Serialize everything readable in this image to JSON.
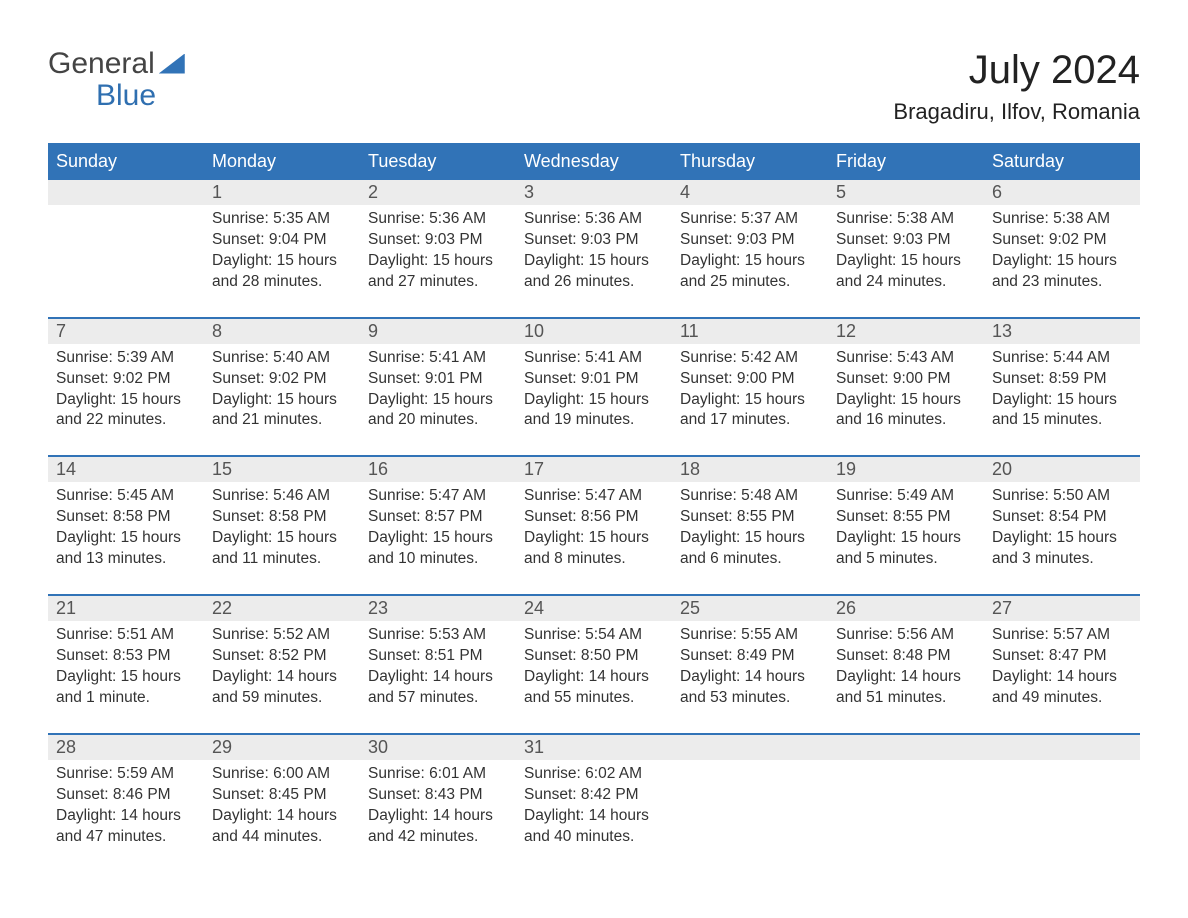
{
  "brand": {
    "general": "General",
    "blue": "Blue"
  },
  "title": "July 2024",
  "location": "Bragadiru, Ilfov, Romania",
  "header_bg": "#3173b7",
  "header_fg": "#ffffff",
  "daynum_bg": "#ececec",
  "rule_color": "#3173b7",
  "text_color": "#333333",
  "dow": [
    "Sunday",
    "Monday",
    "Tuesday",
    "Wednesday",
    "Thursday",
    "Friday",
    "Saturday"
  ],
  "weeks": [
    {
      "days": [
        {
          "num": "",
          "sunrise": "",
          "sunset": "",
          "daylight1": "",
          "daylight2": ""
        },
        {
          "num": "1",
          "sunrise": "Sunrise: 5:35 AM",
          "sunset": "Sunset: 9:04 PM",
          "daylight1": "Daylight: 15 hours",
          "daylight2": "and 28 minutes."
        },
        {
          "num": "2",
          "sunrise": "Sunrise: 5:36 AM",
          "sunset": "Sunset: 9:03 PM",
          "daylight1": "Daylight: 15 hours",
          "daylight2": "and 27 minutes."
        },
        {
          "num": "3",
          "sunrise": "Sunrise: 5:36 AM",
          "sunset": "Sunset: 9:03 PM",
          "daylight1": "Daylight: 15 hours",
          "daylight2": "and 26 minutes."
        },
        {
          "num": "4",
          "sunrise": "Sunrise: 5:37 AM",
          "sunset": "Sunset: 9:03 PM",
          "daylight1": "Daylight: 15 hours",
          "daylight2": "and 25 minutes."
        },
        {
          "num": "5",
          "sunrise": "Sunrise: 5:38 AM",
          "sunset": "Sunset: 9:03 PM",
          "daylight1": "Daylight: 15 hours",
          "daylight2": "and 24 minutes."
        },
        {
          "num": "6",
          "sunrise": "Sunrise: 5:38 AM",
          "sunset": "Sunset: 9:02 PM",
          "daylight1": "Daylight: 15 hours",
          "daylight2": "and 23 minutes."
        }
      ]
    },
    {
      "days": [
        {
          "num": "7",
          "sunrise": "Sunrise: 5:39 AM",
          "sunset": "Sunset: 9:02 PM",
          "daylight1": "Daylight: 15 hours",
          "daylight2": "and 22 minutes."
        },
        {
          "num": "8",
          "sunrise": "Sunrise: 5:40 AM",
          "sunset": "Sunset: 9:02 PM",
          "daylight1": "Daylight: 15 hours",
          "daylight2": "and 21 minutes."
        },
        {
          "num": "9",
          "sunrise": "Sunrise: 5:41 AM",
          "sunset": "Sunset: 9:01 PM",
          "daylight1": "Daylight: 15 hours",
          "daylight2": "and 20 minutes."
        },
        {
          "num": "10",
          "sunrise": "Sunrise: 5:41 AM",
          "sunset": "Sunset: 9:01 PM",
          "daylight1": "Daylight: 15 hours",
          "daylight2": "and 19 minutes."
        },
        {
          "num": "11",
          "sunrise": "Sunrise: 5:42 AM",
          "sunset": "Sunset: 9:00 PM",
          "daylight1": "Daylight: 15 hours",
          "daylight2": "and 17 minutes."
        },
        {
          "num": "12",
          "sunrise": "Sunrise: 5:43 AM",
          "sunset": "Sunset: 9:00 PM",
          "daylight1": "Daylight: 15 hours",
          "daylight2": "and 16 minutes."
        },
        {
          "num": "13",
          "sunrise": "Sunrise: 5:44 AM",
          "sunset": "Sunset: 8:59 PM",
          "daylight1": "Daylight: 15 hours",
          "daylight2": "and 15 minutes."
        }
      ]
    },
    {
      "days": [
        {
          "num": "14",
          "sunrise": "Sunrise: 5:45 AM",
          "sunset": "Sunset: 8:58 PM",
          "daylight1": "Daylight: 15 hours",
          "daylight2": "and 13 minutes."
        },
        {
          "num": "15",
          "sunrise": "Sunrise: 5:46 AM",
          "sunset": "Sunset: 8:58 PM",
          "daylight1": "Daylight: 15 hours",
          "daylight2": "and 11 minutes."
        },
        {
          "num": "16",
          "sunrise": "Sunrise: 5:47 AM",
          "sunset": "Sunset: 8:57 PM",
          "daylight1": "Daylight: 15 hours",
          "daylight2": "and 10 minutes."
        },
        {
          "num": "17",
          "sunrise": "Sunrise: 5:47 AM",
          "sunset": "Sunset: 8:56 PM",
          "daylight1": "Daylight: 15 hours",
          "daylight2": "and 8 minutes."
        },
        {
          "num": "18",
          "sunrise": "Sunrise: 5:48 AM",
          "sunset": "Sunset: 8:55 PM",
          "daylight1": "Daylight: 15 hours",
          "daylight2": "and 6 minutes."
        },
        {
          "num": "19",
          "sunrise": "Sunrise: 5:49 AM",
          "sunset": "Sunset: 8:55 PM",
          "daylight1": "Daylight: 15 hours",
          "daylight2": "and 5 minutes."
        },
        {
          "num": "20",
          "sunrise": "Sunrise: 5:50 AM",
          "sunset": "Sunset: 8:54 PM",
          "daylight1": "Daylight: 15 hours",
          "daylight2": "and 3 minutes."
        }
      ]
    },
    {
      "days": [
        {
          "num": "21",
          "sunrise": "Sunrise: 5:51 AM",
          "sunset": "Sunset: 8:53 PM",
          "daylight1": "Daylight: 15 hours",
          "daylight2": "and 1 minute."
        },
        {
          "num": "22",
          "sunrise": "Sunrise: 5:52 AM",
          "sunset": "Sunset: 8:52 PM",
          "daylight1": "Daylight: 14 hours",
          "daylight2": "and 59 minutes."
        },
        {
          "num": "23",
          "sunrise": "Sunrise: 5:53 AM",
          "sunset": "Sunset: 8:51 PM",
          "daylight1": "Daylight: 14 hours",
          "daylight2": "and 57 minutes."
        },
        {
          "num": "24",
          "sunrise": "Sunrise: 5:54 AM",
          "sunset": "Sunset: 8:50 PM",
          "daylight1": "Daylight: 14 hours",
          "daylight2": "and 55 minutes."
        },
        {
          "num": "25",
          "sunrise": "Sunrise: 5:55 AM",
          "sunset": "Sunset: 8:49 PM",
          "daylight1": "Daylight: 14 hours",
          "daylight2": "and 53 minutes."
        },
        {
          "num": "26",
          "sunrise": "Sunrise: 5:56 AM",
          "sunset": "Sunset: 8:48 PM",
          "daylight1": "Daylight: 14 hours",
          "daylight2": "and 51 minutes."
        },
        {
          "num": "27",
          "sunrise": "Sunrise: 5:57 AM",
          "sunset": "Sunset: 8:47 PM",
          "daylight1": "Daylight: 14 hours",
          "daylight2": "and 49 minutes."
        }
      ]
    },
    {
      "days": [
        {
          "num": "28",
          "sunrise": "Sunrise: 5:59 AM",
          "sunset": "Sunset: 8:46 PM",
          "daylight1": "Daylight: 14 hours",
          "daylight2": "and 47 minutes."
        },
        {
          "num": "29",
          "sunrise": "Sunrise: 6:00 AM",
          "sunset": "Sunset: 8:45 PM",
          "daylight1": "Daylight: 14 hours",
          "daylight2": "and 44 minutes."
        },
        {
          "num": "30",
          "sunrise": "Sunrise: 6:01 AM",
          "sunset": "Sunset: 8:43 PM",
          "daylight1": "Daylight: 14 hours",
          "daylight2": "and 42 minutes."
        },
        {
          "num": "31",
          "sunrise": "Sunrise: 6:02 AM",
          "sunset": "Sunset: 8:42 PM",
          "daylight1": "Daylight: 14 hours",
          "daylight2": "and 40 minutes."
        },
        {
          "num": "",
          "sunrise": "",
          "sunset": "",
          "daylight1": "",
          "daylight2": ""
        },
        {
          "num": "",
          "sunrise": "",
          "sunset": "",
          "daylight1": "",
          "daylight2": ""
        },
        {
          "num": "",
          "sunrise": "",
          "sunset": "",
          "daylight1": "",
          "daylight2": ""
        }
      ]
    }
  ]
}
